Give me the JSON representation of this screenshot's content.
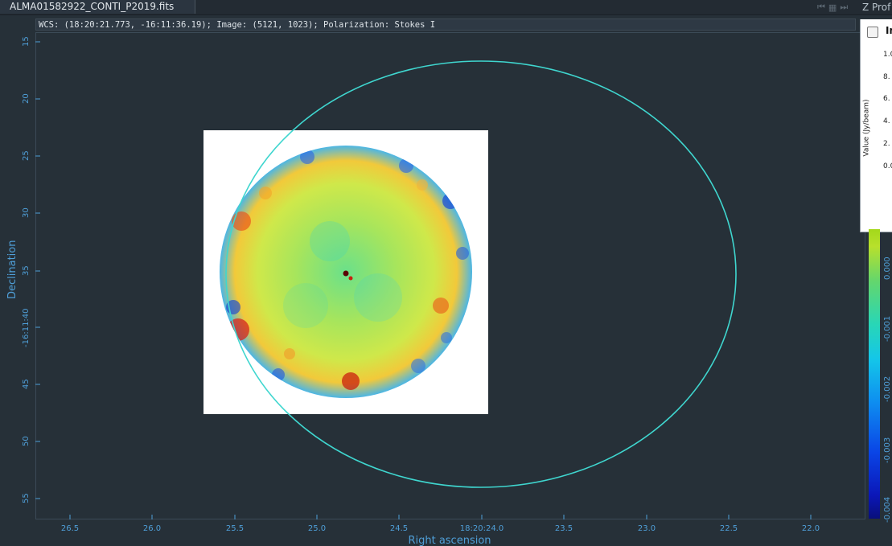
{
  "tab": {
    "title": "ALMA01582922_CONTI_P2019.fits"
  },
  "zprofile_tab": {
    "title": "Z Prof"
  },
  "status": {
    "text": "WCS: (18:20:21.773, -16:11:36.19); Image: (5121, 1023); Polarization: Stokes I"
  },
  "axes": {
    "x_title": "Right ascension",
    "y_title": "Declination",
    "x_ticks": [
      "26.5",
      "26.0",
      "25.5",
      "25.0",
      "24.5",
      "18:20:24.0",
      "23.5",
      "23.0",
      "22.5",
      "22.0"
    ],
    "y_ticks": [
      "15",
      "20",
      "25",
      "30",
      "35",
      "-16:11:40",
      "45",
      "50",
      "55"
    ]
  },
  "zprofile": {
    "title": "In",
    "ylabel": "Value (Jy/beam)",
    "ticks": [
      "1.0",
      "8.",
      "6.",
      "4.",
      "2.",
      "0.0"
    ]
  },
  "colorbar": {
    "ticks": [
      "0.000",
      "-0.001",
      "-0.002",
      "-0.003",
      "-0.004"
    ]
  },
  "colors": {
    "accent": "#4f9fd8",
    "region": "#3fd6cf",
    "background": "#263038"
  }
}
